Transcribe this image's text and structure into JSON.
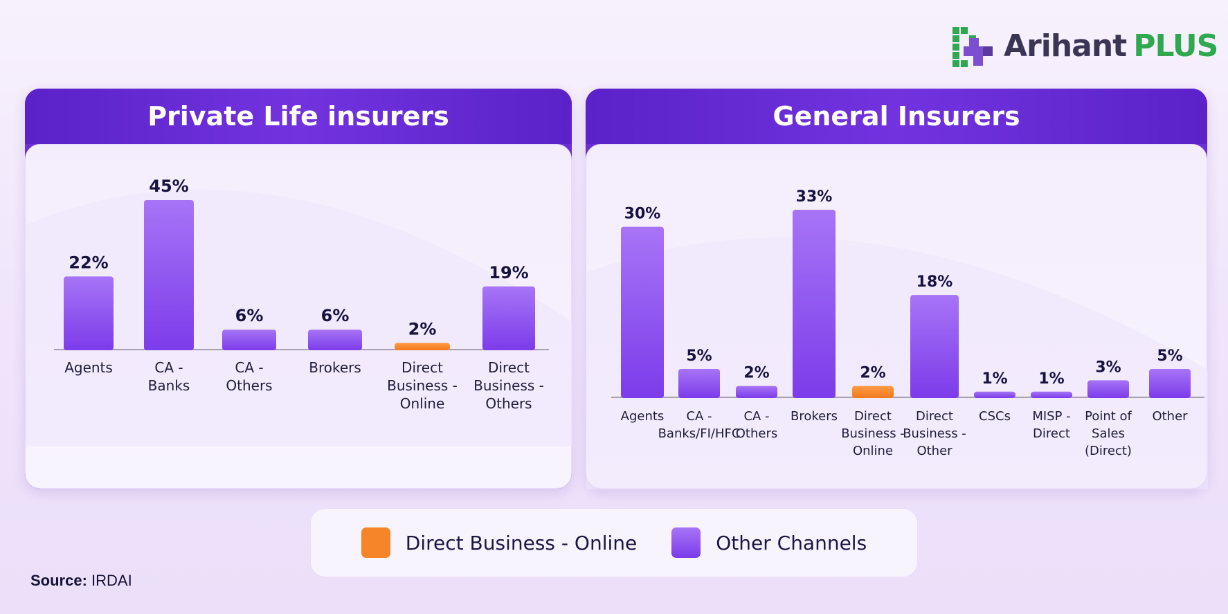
{
  "brand": {
    "name_dark": "Arihant",
    "name_accent": "PLUS"
  },
  "colors": {
    "online": "#f6852a",
    "other": "#8b4ef0",
    "header": "#6a2fd8"
  },
  "chart_data": [
    {
      "type": "bar",
      "title": "Private Life insurers",
      "categories": [
        "Agents",
        "CA - Banks",
        "CA - Others",
        "Brokers",
        "Direct Business - Online",
        "Direct Business - Others"
      ],
      "values": [
        22,
        45,
        6,
        6,
        2,
        19
      ],
      "value_labels": [
        "22%",
        "45%",
        "6%",
        "6%",
        "2%",
        "19%"
      ],
      "highlight": [
        false,
        false,
        false,
        false,
        true,
        false
      ],
      "unit": "%",
      "ylim": [
        0,
        45
      ],
      "grid": false
    },
    {
      "type": "bar",
      "title": "General Insurers",
      "categories": [
        "Agents",
        "CA - Banks/FI/HFC",
        "CA - Others",
        "Brokers",
        "Direct Business - Online",
        "Direct Business - Other",
        "CSCs",
        "MISP - Direct",
        "Point of Sales (Direct)",
        "Other"
      ],
      "values": [
        30,
        5,
        2,
        33,
        2,
        18,
        1,
        1,
        3,
        5
      ],
      "value_labels": [
        "30%",
        "5%",
        "2%",
        "33%",
        "2%",
        "18%",
        "1%",
        "1%",
        "3%",
        "5%"
      ],
      "highlight": [
        false,
        false,
        false,
        false,
        true,
        false,
        false,
        false,
        false,
        false
      ],
      "unit": "%",
      "ylim": [
        0,
        33
      ],
      "grid": false
    }
  ],
  "legend": {
    "items": [
      {
        "label": "Direct Business - Online",
        "color": "#f6852a"
      },
      {
        "label": "Other Channels",
        "color": "#8b4ef0"
      }
    ]
  },
  "source": {
    "label": "Source:",
    "value": "IRDAI"
  }
}
